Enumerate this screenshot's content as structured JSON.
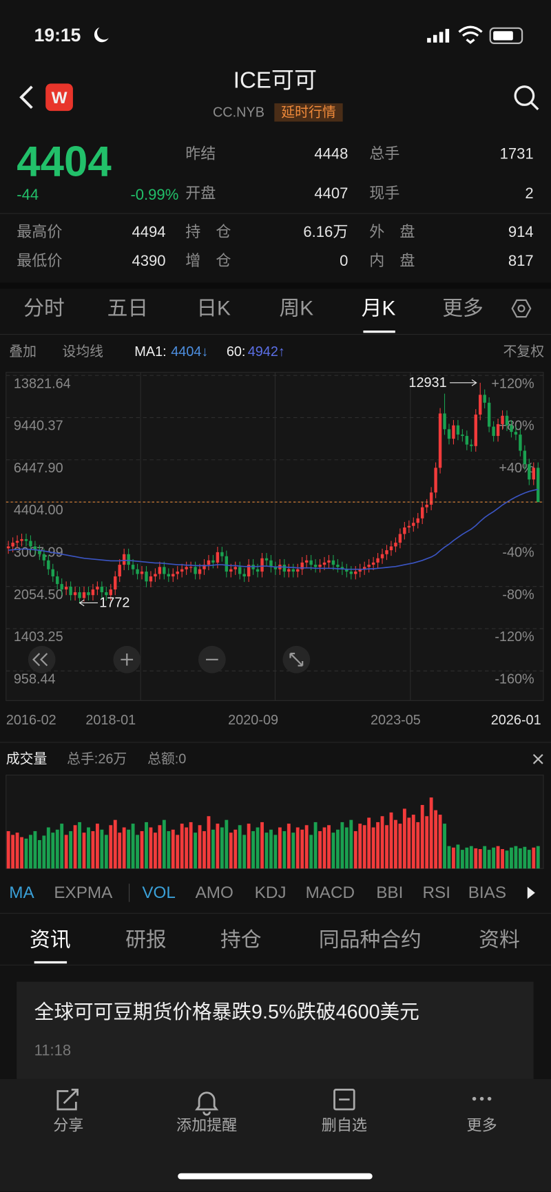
{
  "status_bar": {
    "time": "19:15"
  },
  "header": {
    "logo": "W",
    "title": "ICE可可",
    "code": "CC.NYB",
    "tag": "延时行情"
  },
  "quote": {
    "price": 4404,
    "change": -44,
    "change_pct": "-0.99%",
    "fields": [
      {
        "label": "昨结",
        "value": 4448
      },
      {
        "label": "总手",
        "value": 1731
      },
      {
        "label": "开盘",
        "value": 4407
      },
      {
        "label": "现手",
        "value": 2
      },
      {
        "label": "最高价",
        "value": 4494
      },
      {
        "label": "持　仓",
        "value": "6.16万"
      },
      {
        "label": "外　盘",
        "value": 914
      },
      {
        "label": "最低价",
        "value": 4390
      },
      {
        "label": "增　仓",
        "value": 0
      },
      {
        "label": "内　盘",
        "value": 817
      }
    ]
  },
  "period_tabs": [
    "分时",
    "五日",
    "日K",
    "周K",
    "月K",
    "更多"
  ],
  "toolbar": {
    "overlay": "叠加",
    "set_ma": "设均线",
    "ma1_label": "MA1:",
    "ma1_value": "4404↓",
    "ma2_label": "60:",
    "ma2_value": "4942↑",
    "adjust": "不复权"
  },
  "chart_data": [
    {
      "type": "candlestick",
      "yscale": "log",
      "grid": true,
      "up_color": "#f23b3b",
      "down_color": "#1aa150",
      "last_color": "#e8893a",
      "ylim": [
        733,
        14210
      ],
      "yticks": [
        13821.64,
        9440.37,
        {
          "value": 6447.9,
          "label": "6447.90"
        },
        {
          "value": 4404,
          "label": "4404.00"
        },
        3007.99,
        {
          "value": 2054.5,
          "label": "2054.50"
        },
        1403.25,
        958.44
      ],
      "y2lim": [
        -188.1,
        122.9
      ],
      "y2ticks": [
        {
          "value": 120,
          "label": "+120%"
        },
        {
          "value": 80,
          "label": "+80%"
        },
        {
          "value": 40,
          "label": "+40%"
        },
        {
          "value": -40,
          "label": "-40%"
        },
        {
          "value": -80,
          "label": "-80%"
        },
        {
          "value": -120,
          "label": "-120%"
        },
        {
          "value": -160,
          "label": "-160%"
        }
      ],
      "categories": [
        "2016-02",
        null,
        null,
        null,
        null,
        null,
        null,
        null,
        null,
        null,
        null,
        null,
        null,
        null,
        null,
        null,
        null,
        null,
        null,
        null,
        null,
        null,
        null,
        "2018-01",
        null,
        null,
        null,
        null,
        null,
        null,
        null,
        null,
        null,
        null,
        null,
        null,
        null,
        null,
        null,
        null,
        null,
        null,
        null,
        null,
        null,
        null,
        null,
        null,
        null,
        null,
        null,
        null,
        null,
        null,
        null,
        "2020-09",
        null,
        null,
        null,
        null,
        null,
        null,
        null,
        null,
        null,
        null,
        null,
        null,
        null,
        null,
        null,
        null,
        null,
        null,
        null,
        null,
        null,
        null,
        null,
        null,
        null,
        null,
        null,
        null,
        null,
        null,
        null,
        "2023-05",
        null,
        null,
        null,
        null,
        null,
        null,
        null,
        null,
        null,
        null,
        null,
        null,
        null,
        null,
        null,
        null,
        null,
        null,
        null,
        null,
        null,
        null,
        null,
        null,
        null,
        null,
        null,
        null,
        null,
        null,
        null,
        "2026-01"
      ],
      "candles": [
        [
          2900,
          3100,
          2760,
          2950
        ],
        [
          2950,
          3200,
          2800,
          3050
        ],
        [
          3050,
          3260,
          2900,
          3100
        ],
        [
          3100,
          3310,
          2950,
          3150
        ],
        [
          3150,
          3310,
          2950,
          3100
        ],
        [
          3100,
          3260,
          2800,
          2950
        ],
        [
          2950,
          3100,
          2710,
          2850
        ],
        [
          2850,
          2990,
          2610,
          2750
        ],
        [
          2750,
          2890,
          2470,
          2600
        ],
        [
          2600,
          2730,
          2280,
          2400
        ],
        [
          2400,
          2520,
          2140,
          2250
        ],
        [
          2250,
          2360,
          2000,
          2100
        ],
        [
          2100,
          2210,
          1900,
          2000
        ],
        [
          2000,
          2150,
          1900,
          2050
        ],
        [
          2050,
          2150,
          1810,
          1900
        ],
        [
          1900,
          2050,
          1810,
          1950
        ],
        [
          1950,
          2050,
          1772,
          1850
        ],
        [
          1850,
          2050,
          1790,
          1950
        ],
        [
          1950,
          2050,
          1810,
          1900
        ],
        [
          1900,
          2100,
          1810,
          2000
        ],
        [
          2000,
          2150,
          1900,
          2050
        ],
        [
          2050,
          2150,
          1850,
          1950
        ],
        [
          1950,
          2050,
          1810,
          1900
        ],
        [
          1900,
          2100,
          1810,
          2000
        ],
        [
          2000,
          2360,
          1900,
          2250
        ],
        [
          2250,
          2630,
          2140,
          2500
        ],
        [
          2500,
          2890,
          2380,
          2750
        ],
        [
          2750,
          2890,
          2380,
          2500
        ],
        [
          2500,
          2630,
          2280,
          2400
        ],
        [
          2400,
          2520,
          2190,
          2300
        ],
        [
          2300,
          2470,
          2190,
          2350
        ],
        [
          2350,
          2470,
          2040,
          2150
        ],
        [
          2150,
          2360,
          2040,
          2250
        ],
        [
          2250,
          2420,
          2140,
          2300
        ],
        [
          2300,
          2570,
          2190,
          2450
        ],
        [
          2450,
          2570,
          2190,
          2300
        ],
        [
          2300,
          2420,
          2140,
          2250
        ],
        [
          2250,
          2420,
          2140,
          2300
        ],
        [
          2300,
          2470,
          2190,
          2350
        ],
        [
          2350,
          2520,
          2230,
          2400
        ],
        [
          2400,
          2570,
          2280,
          2450
        ],
        [
          2450,
          2570,
          2330,
          2450
        ],
        [
          2450,
          2570,
          2190,
          2300
        ],
        [
          2300,
          2520,
          2190,
          2400
        ],
        [
          2400,
          2630,
          2280,
          2500
        ],
        [
          2500,
          2730,
          2380,
          2600
        ],
        [
          2600,
          2730,
          2420,
          2550
        ],
        [
          2550,
          2940,
          2420,
          2800
        ],
        [
          2800,
          2940,
          2570,
          2700
        ],
        [
          2700,
          2840,
          2230,
          2350
        ],
        [
          2350,
          2520,
          2230,
          2400
        ],
        [
          2400,
          2570,
          2280,
          2450
        ],
        [
          2450,
          2570,
          2190,
          2300
        ],
        [
          2300,
          2420,
          2140,
          2250
        ],
        [
          2250,
          2630,
          2140,
          2500
        ],
        [
          2500,
          2630,
          2280,
          2400
        ],
        [
          2400,
          2520,
          2230,
          2350
        ],
        [
          2350,
          2780,
          2230,
          2650
        ],
        [
          2650,
          2780,
          2470,
          2600
        ],
        [
          2600,
          2730,
          2330,
          2450
        ],
        [
          2450,
          2570,
          2280,
          2400
        ],
        [
          2400,
          2630,
          2280,
          2500
        ],
        [
          2500,
          2630,
          2230,
          2350
        ],
        [
          2350,
          2520,
          2230,
          2400
        ],
        [
          2400,
          2520,
          2230,
          2350
        ],
        [
          2350,
          2520,
          2230,
          2400
        ],
        [
          2400,
          2680,
          2280,
          2550
        ],
        [
          2550,
          2730,
          2420,
          2600
        ],
        [
          2600,
          2730,
          2380,
          2500
        ],
        [
          2500,
          2630,
          2330,
          2450
        ],
        [
          2450,
          2630,
          2330,
          2500
        ],
        [
          2500,
          2680,
          2380,
          2550
        ],
        [
          2550,
          2730,
          2420,
          2600
        ],
        [
          2600,
          2730,
          2380,
          2500
        ],
        [
          2500,
          2630,
          2330,
          2450
        ],
        [
          2450,
          2570,
          2280,
          2400
        ],
        [
          2400,
          2520,
          2230,
          2350
        ],
        [
          2350,
          2470,
          2190,
          2300
        ],
        [
          2300,
          2470,
          2190,
          2350
        ],
        [
          2350,
          2520,
          2230,
          2400
        ],
        [
          2400,
          2570,
          2280,
          2450
        ],
        [
          2450,
          2630,
          2330,
          2500
        ],
        [
          2500,
          2680,
          2380,
          2550
        ],
        [
          2550,
          2780,
          2420,
          2650
        ],
        [
          2650,
          2890,
          2520,
          2750
        ],
        [
          2750,
          2990,
          2610,
          2850
        ],
        [
          2850,
          3100,
          2710,
          2950
        ],
        [
          2950,
          3200,
          2800,
          3050
        ],
        [
          3050,
          3470,
          2900,
          3300
        ],
        [
          3300,
          3680,
          3140,
          3500
        ],
        [
          3500,
          3730,
          3330,
          3550
        ],
        [
          3550,
          3830,
          3370,
          3650
        ],
        [
          3650,
          3990,
          3470,
          3800
        ],
        [
          3800,
          4410,
          3610,
          4200
        ],
        [
          4200,
          4520,
          3990,
          4300
        ],
        [
          4300,
          5040,
          4090,
          4800
        ],
        [
          4800,
          6300,
          4560,
          6000
        ],
        [
          6000,
          10290,
          5700,
          9800
        ],
        [
          9800,
          11720,
          8080,
          8500
        ],
        [
          8500,
          8930,
          7410,
          7800
        ],
        [
          7800,
          9240,
          7410,
          8800
        ],
        [
          8800,
          9240,
          7700,
          8100
        ],
        [
          8100,
          8510,
          7600,
          8000
        ],
        [
          8000,
          8400,
          7030,
          7400
        ],
        [
          7400,
          7770,
          6940,
          7300
        ],
        [
          7300,
          10190,
          6940,
          9700
        ],
        [
          9700,
          12931,
          9220,
          11600
        ],
        [
          11600,
          12180,
          10260,
          10800
        ],
        [
          10800,
          11340,
          8270,
          8700
        ],
        [
          8700,
          9140,
          7600,
          8000
        ],
        [
          8000,
          9350,
          7600,
          8900
        ],
        [
          8900,
          10080,
          8460,
          9600
        ],
        [
          9600,
          10080,
          8360,
          8800
        ],
        [
          8800,
          9240,
          7890,
          8300
        ],
        [
          8300,
          8720,
          7700,
          8100
        ],
        [
          8100,
          8510,
          6650,
          7000
        ],
        [
          7000,
          7350,
          5890,
          6200
        ],
        [
          6200,
          6510,
          5130,
          5400
        ],
        [
          5400,
          6300,
          5130,
          6000
        ],
        [
          6000,
          6300,
          4390,
          4404
        ]
      ],
      "series": [
        {
          "color": "#3b55c4",
          "values": [
            2850,
            2860,
            2870,
            2880,
            2880,
            2870,
            2860,
            2850,
            2830,
            2810,
            2790,
            2770,
            2750,
            2730,
            2710,
            2690,
            2670,
            2650,
            2640,
            2630,
            2620,
            2610,
            2600,
            2590,
            2590,
            2590,
            2600,
            2600,
            2590,
            2580,
            2570,
            2560,
            2550,
            2540,
            2540,
            2530,
            2520,
            2510,
            2500,
            2500,
            2490,
            2490,
            2480,
            2480,
            2480,
            2480,
            2490,
            2500,
            2500,
            2490,
            2480,
            2480,
            2470,
            2460,
            2460,
            2460,
            2460,
            2470,
            2470,
            2460,
            2450,
            2450,
            2450,
            2440,
            2440,
            2430,
            2430,
            2430,
            2430,
            2420,
            2420,
            2420,
            2420,
            2420,
            2410,
            2410,
            2400,
            2400,
            2400,
            2400,
            2400,
            2410,
            2410,
            2420,
            2430,
            2440,
            2450,
            2460,
            2480,
            2500,
            2520,
            2540,
            2570,
            2600,
            2640,
            2680,
            2740,
            2840,
            2930,
            3010,
            3110,
            3200,
            3290,
            3370,
            3450,
            3560,
            3700,
            3830,
            3940,
            4040,
            4160,
            4290,
            4400,
            4510,
            4610,
            4700,
            4780,
            4850,
            4900,
            4942
          ]
        }
      ]
    },
    {
      "type": "bar",
      "ylim": [
        0,
        125
      ],
      "values": [
        50,
        45,
        48,
        42,
        40,
        45,
        50,
        38,
        44,
        55,
        48,
        52,
        60,
        45,
        50,
        58,
        62,
        48,
        55,
        50,
        60,
        52,
        45,
        58,
        65,
        48,
        55,
        52,
        60,
        45,
        50,
        62,
        55,
        48,
        58,
        65,
        50,
        52,
        45,
        60,
        55,
        62,
        48,
        58,
        50,
        70,
        52,
        60,
        55,
        65,
        48,
        52,
        58,
        45,
        60,
        50,
        55,
        62,
        48,
        52,
        45,
        55,
        50,
        60,
        48,
        55,
        52,
        58,
        45,
        62,
        50,
        55,
        58,
        48,
        52,
        62,
        55,
        65,
        50,
        60,
        58,
        68,
        55,
        62,
        70,
        58,
        75,
        65,
        60,
        80,
        68,
        72,
        62,
        85,
        70,
        95,
        78,
        72,
        60,
        30,
        28,
        32,
        25,
        28,
        30,
        27,
        26,
        30,
        25,
        28,
        30,
        26,
        24,
        28,
        30,
        27,
        29,
        25,
        28,
        30
      ]
    }
  ],
  "volume_header": {
    "title": "成交量",
    "total_volume": "总手:26万",
    "total_amount": "总额:0"
  },
  "indicator_tabs": [
    "MA",
    "EXPMA",
    "VOL",
    "AMO",
    "KDJ",
    "MACD",
    "BBI",
    "RSI",
    "BIAS"
  ],
  "news_tabs": [
    "资讯",
    "研报",
    "持仓",
    "同品种合约",
    "资料"
  ],
  "news": [
    {
      "headline": "全球可可豆期货价格暴跌9.5%跌破4600美元",
      "time": "11:18"
    }
  ],
  "actions": [
    "分享",
    "添加提醒",
    "删自选",
    "更多"
  ]
}
